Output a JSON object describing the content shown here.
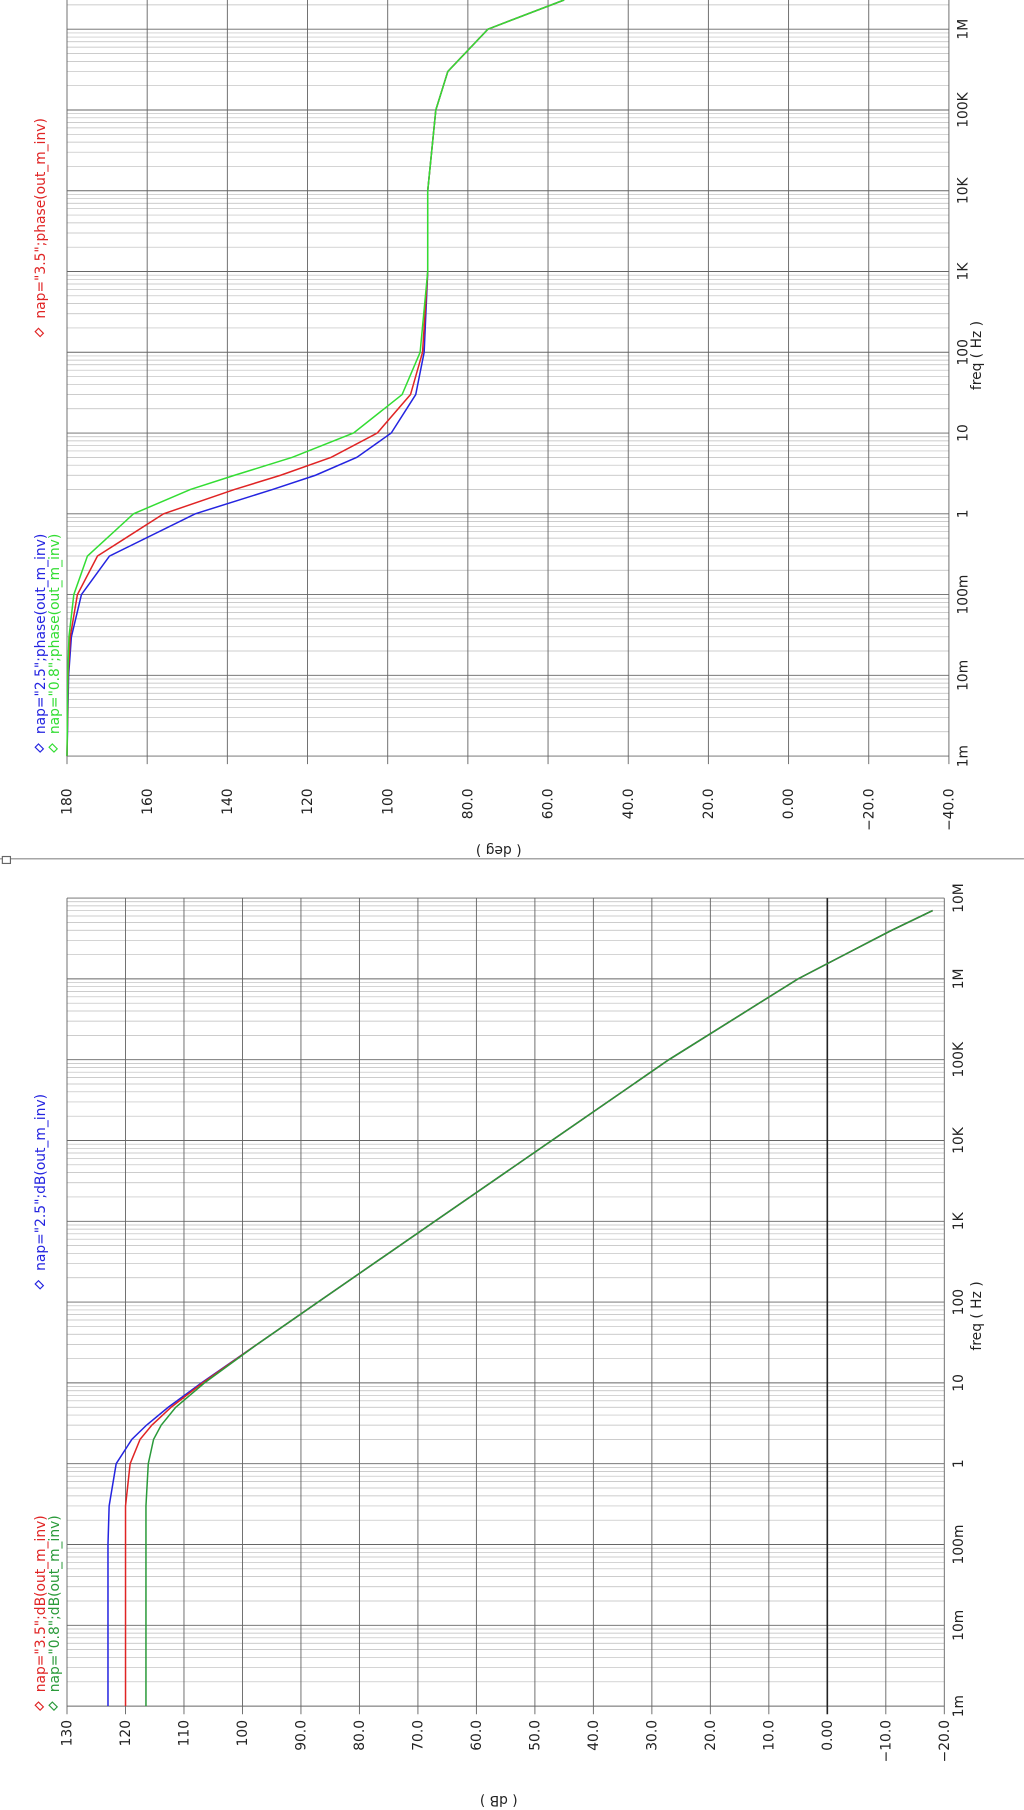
{
  "chart_data": [
    {
      "type": "line",
      "x_label": "freq ( Hz )",
      "y_label": "( deg )",
      "xscale": "log",
      "grid": true,
      "xlim": [
        0.001,
        2300000
      ],
      "ylim": [
        -40,
        180
      ],
      "xticks": [
        {
          "value": 0.001,
          "label": "1m"
        },
        {
          "value": 0.01,
          "label": "10m"
        },
        {
          "value": 0.1,
          "label": "100m"
        },
        1,
        10,
        100,
        {
          "value": 1000,
          "label": "1K"
        },
        {
          "value": 10000,
          "label": "10K"
        },
        {
          "value": 100000,
          "label": "100K"
        },
        {
          "value": 1000000,
          "label": "1M"
        }
      ],
      "yticks": [
        180,
        160,
        140,
        120,
        100,
        {
          "value": 80,
          "label": "80.0"
        },
        {
          "value": 60,
          "label": "60.0"
        },
        {
          "value": 40,
          "label": "40.0"
        },
        {
          "value": 20,
          "label": "20.0"
        },
        {
          "value": 0,
          "label": "0.00"
        },
        {
          "value": -20,
          "label": "−20.0"
        },
        {
          "value": -40,
          "label": "−40.0"
        }
      ],
      "x": [
        0.001,
        0.01,
        0.03,
        0.1,
        0.3,
        1,
        2,
        3,
        5,
        10,
        30,
        100,
        1000,
        10000,
        100000,
        300000,
        1000000,
        2300000
      ],
      "series": [
        {
          "name": "nap=\"2.5\";phase(out_m_inv)",
          "color": "#2424e0",
          "values": [
            180,
            179.6,
            178.9,
            176.4,
            169.4,
            148,
            128.7,
            118,
            107.7,
            99.1,
            93,
            90.9,
            90,
            90,
            88,
            85,
            75,
            56
          ]
        },
        {
          "name": "nap=\"3.5\";phase(out_m_inv)",
          "color": "#e02424",
          "values": [
            180,
            179.7,
            179.2,
            177.4,
            172.4,
            155.9,
            138.2,
            126.7,
            114.1,
            102.6,
            94.3,
            91.3,
            90,
            90,
            88,
            85,
            75,
            56
          ]
        },
        {
          "name": "nap=\"0.8\";phase(out_m_inv)",
          "color": "#33dd33",
          "values": [
            180,
            179.8,
            179.5,
            178.3,
            174.9,
            163.4,
            149.2,
            138.2,
            123.8,
            108.5,
            96.4,
            91.9,
            90,
            90,
            88,
            85,
            75,
            56
          ]
        }
      ]
    },
    {
      "type": "line",
      "x_label": "freq ( Hz )",
      "y_label": "( dB )",
      "xscale": "log",
      "grid": true,
      "xlim": [
        0.001,
        10000000
      ],
      "ylim": [
        -20,
        130
      ],
      "xticks": [
        {
          "value": 0.001,
          "label": "1m"
        },
        {
          "value": 0.01,
          "label": "10m"
        },
        {
          "value": 0.1,
          "label": "100m"
        },
        1,
        10,
        100,
        {
          "value": 1000,
          "label": "1K"
        },
        {
          "value": 10000,
          "label": "10K"
        },
        {
          "value": 100000,
          "label": "100K"
        },
        {
          "value": 1000000,
          "label": "1M"
        },
        {
          "value": 10000000,
          "label": "10M"
        }
      ],
      "yticks": [
        130,
        120,
        110,
        100,
        {
          "value": 90,
          "label": "90.0"
        },
        {
          "value": 80,
          "label": "80.0"
        },
        {
          "value": 70,
          "label": "70.0"
        },
        {
          "value": 60,
          "label": "60.0"
        },
        {
          "value": 50,
          "label": "50.0"
        },
        {
          "value": 40,
          "label": "40.0"
        },
        {
          "value": 30,
          "label": "30.0"
        },
        {
          "value": 20,
          "label": "20.0"
        },
        {
          "value": 10,
          "label": "10.0"
        },
        {
          "value": 0,
          "label": "0.00"
        },
        {
          "value": -10,
          "label": "−10.0"
        },
        {
          "value": -20,
          "label": "−20.0"
        }
      ],
      "x": [
        0.001,
        0.01,
        0.1,
        0.3,
        1,
        2,
        3,
        5,
        10,
        30,
        100,
        1000,
        10000,
        100000,
        1000000,
        2000000,
        4000000,
        7000000
      ],
      "series": [
        {
          "name": "nap=\"2.5\";dB(out_m_inv)",
          "color": "#2424e0",
          "values": [
            123,
            123,
            123,
            122.8,
            121.6,
            118.9,
            116.4,
            112.7,
            107,
            97.5,
            87.1,
            67.1,
            47.1,
            27.1,
            5,
            -3,
            -11,
            -18
          ]
        },
        {
          "name": "nap=\"3.5\";dB(out_m_inv)",
          "color": "#e02424",
          "values": [
            120,
            120,
            120,
            120,
            119.2,
            117.5,
            115.5,
            112.2,
            106.8,
            97.5,
            87.1,
            67.1,
            47.1,
            27.1,
            5,
            -3,
            -11,
            -18
          ]
        },
        {
          "name": "nap=\"0.8\";dB(out_m_inv)",
          "color": "#2a9a3a",
          "values": [
            116.5,
            116.5,
            116.5,
            116.5,
            116.1,
            115.2,
            113.9,
            111.4,
            106.5,
            97.5,
            87.1,
            67.1,
            47.1,
            27.1,
            5,
            -3,
            -11,
            -18
          ]
        }
      ]
    }
  ]
}
